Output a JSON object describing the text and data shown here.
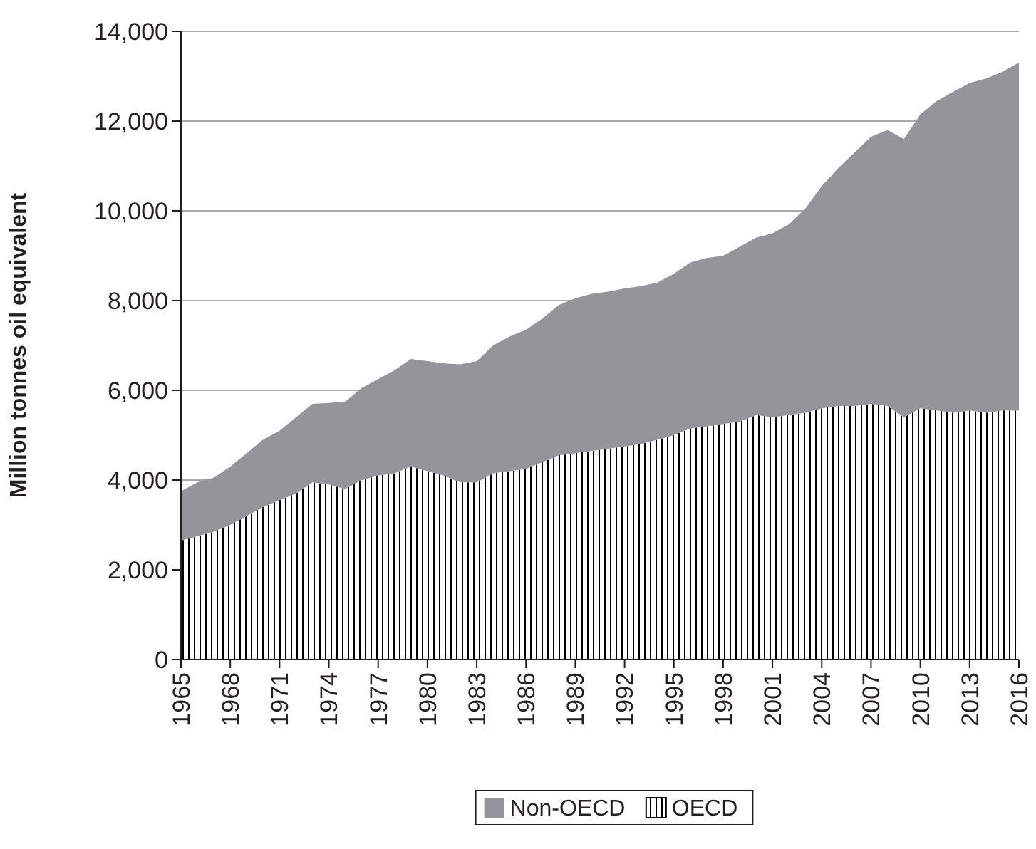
{
  "chart_data": {
    "type": "area",
    "stacked": true,
    "ylabel": "Million tonnes oil equivalent",
    "x": [
      1965,
      1966,
      1967,
      1968,
      1969,
      1970,
      1971,
      1972,
      1973,
      1974,
      1975,
      1976,
      1977,
      1978,
      1979,
      1980,
      1981,
      1982,
      1983,
      1984,
      1985,
      1986,
      1987,
      1988,
      1989,
      1990,
      1991,
      1992,
      1993,
      1994,
      1995,
      1996,
      1997,
      1998,
      1999,
      2000,
      2001,
      2002,
      2003,
      2004,
      2005,
      2006,
      2007,
      2008,
      2009,
      2010,
      2011,
      2012,
      2013,
      2014,
      2015,
      2016
    ],
    "xlim": [
      1965,
      2016
    ],
    "xticks": [
      1965,
      1968,
      1971,
      1974,
      1977,
      1980,
      1983,
      1986,
      1989,
      1992,
      1995,
      1998,
      2001,
      2004,
      2007,
      2010,
      2013,
      2016
    ],
    "ylim": [
      0,
      14000
    ],
    "yticks": [
      {
        "value": 0,
        "label": "0"
      },
      {
        "value": 2000,
        "label": "2,000"
      },
      {
        "value": 4000,
        "label": "4,000"
      },
      {
        "value": 6000,
        "label": "6,000"
      },
      {
        "value": 8000,
        "label": "8,000"
      },
      {
        "value": 10000,
        "label": "10,000"
      },
      {
        "value": 12000,
        "label": "12,000"
      },
      {
        "value": 14000,
        "label": "14,000"
      }
    ],
    "grid": "y",
    "legend": "bottom",
    "series": [
      {
        "name": "OECD",
        "color": "#000000",
        "values": [
          2650,
          2750,
          2850,
          3000,
          3200,
          3400,
          3550,
          3700,
          3950,
          3900,
          3800,
          4000,
          4100,
          4150,
          4300,
          4200,
          4100,
          3950,
          3950,
          4150,
          4200,
          4250,
          4400,
          4550,
          4600,
          4650,
          4700,
          4750,
          4800,
          4900,
          5000,
          5150,
          5200,
          5250,
          5300,
          5450,
          5400,
          5450,
          5500,
          5600,
          5650,
          5650,
          5700,
          5650,
          5400,
          5600,
          5550,
          5500,
          5550,
          5500,
          5550,
          5550
        ]
      },
      {
        "name": "Non-OECD",
        "color": "#939598",
        "values": [
          1100,
          1200,
          1200,
          1300,
          1400,
          1500,
          1550,
          1700,
          1750,
          1820,
          1950,
          2050,
          2150,
          2300,
          2400,
          2450,
          2500,
          2630,
          2700,
          2850,
          3000,
          3100,
          3200,
          3350,
          3450,
          3500,
          3500,
          3520,
          3520,
          3500,
          3600,
          3700,
          3750,
          3750,
          3900,
          3950,
          4100,
          4250,
          4550,
          4950,
          5300,
          5650,
          5950,
          6150,
          6200,
          6550,
          6900,
          7150,
          7300,
          7450,
          7550,
          7750
        ]
      }
    ]
  }
}
